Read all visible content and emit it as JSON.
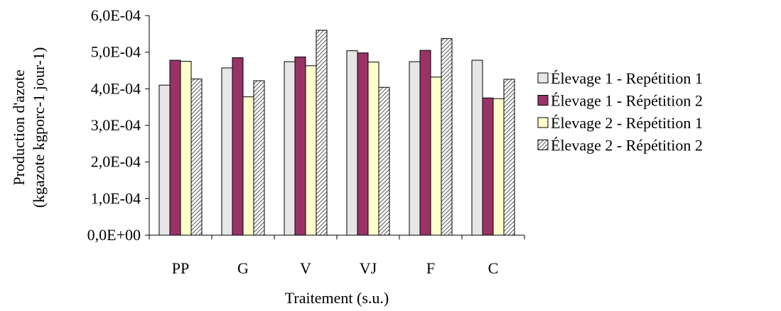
{
  "chart_data": {
    "type": "bar",
    "categories": [
      "PP",
      "G",
      "V",
      "VJ",
      "F",
      "C"
    ],
    "series": [
      {
        "name": "Élevage 1 - Repétition 1",
        "values": [
          0.00041,
          0.000457,
          0.000474,
          0.000504,
          0.000474,
          0.000478
        ],
        "color": "#e6e6e6",
        "pattern": "solid"
      },
      {
        "name": "Élevage 1 - Répétition 2",
        "values": [
          0.000478,
          0.000485,
          0.000487,
          0.000498,
          0.000505,
          0.000375
        ],
        "color": "#993366",
        "pattern": "solid"
      },
      {
        "name": "Élevage 2 - Répétition 1",
        "values": [
          0.000475,
          0.000378,
          0.000463,
          0.000473,
          0.000432,
          0.000373
        ],
        "color": "#ffffcc",
        "pattern": "solid"
      },
      {
        "name": "Élevage 2 - Répétition 2",
        "values": [
          0.000427,
          0.000422,
          0.00056,
          0.000404,
          0.000537,
          0.000426
        ],
        "color": "#b3b3b3",
        "pattern": "hatched"
      }
    ],
    "ylim": [
      0,
      0.0006
    ],
    "yticks": [
      "0,0E+00",
      "1,0E-04",
      "2,0E-04",
      "3,0E-04",
      "4,0E-04",
      "5,0E-04",
      "6,0E-04"
    ],
    "ylabel_line1": "Production d'azote",
    "ylabel_line2": "(kgazote kgporc-1 jour-1)",
    "xlabel": "Traitement (s.u.)",
    "legend_position": "right"
  }
}
